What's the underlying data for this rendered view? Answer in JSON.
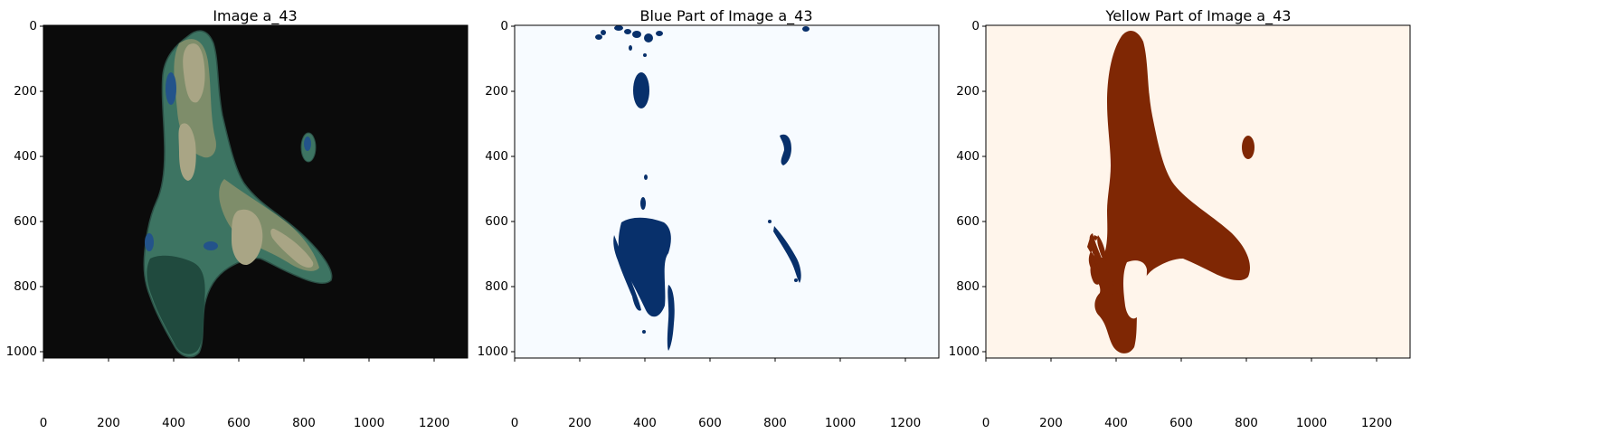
{
  "figure": {
    "panels": [
      {
        "title": "Image a_43",
        "xticks": [
          "0",
          "200",
          "400",
          "600",
          "800",
          "1000",
          "1200"
        ],
        "yticks": [
          "0",
          "200",
          "400",
          "600",
          "800",
          "1000"
        ],
        "colors": {
          "background": "#0b0b0b",
          "body": "#3d7462",
          "light": "#a9a585",
          "mid": "#7e8d6a",
          "dark": "#204a3e",
          "blue": "#23538a"
        }
      },
      {
        "title": "Blue Part of Image a_43",
        "xticks": [
          "0",
          "200",
          "400",
          "600",
          "800",
          "1000",
          "1200"
        ],
        "yticks": [
          "0",
          "200",
          "400",
          "600",
          "800",
          "1000"
        ],
        "colors": {
          "background": "#f7fbff",
          "mask": "#08306b"
        }
      },
      {
        "title": "Yellow Part of Image a_43",
        "xticks": [
          "0",
          "200",
          "400",
          "600",
          "800",
          "1000",
          "1200"
        ],
        "yticks": [
          "0",
          "200",
          "400",
          "600",
          "800",
          "1000"
        ],
        "colors": {
          "background": "#fff5eb",
          "mask": "#7f2704"
        }
      }
    ]
  }
}
